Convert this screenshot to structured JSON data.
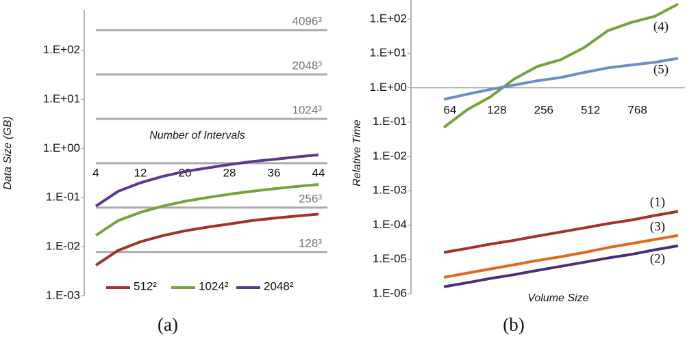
{
  "chart_data": [
    {
      "type": "line",
      "caption": "(a)",
      "x_label": "Number of Intervals",
      "y_label": "Data Size (GB)",
      "log_y": true,
      "ylim": [
        0.001,
        650
      ],
      "yticks": [
        {
          "value": 0.001,
          "label": "1.E-03"
        },
        {
          "value": 0.01,
          "label": "1.E-02"
        },
        {
          "value": 0.1,
          "label": "1.E-01"
        },
        {
          "value": 1,
          "label": "1.E+00"
        },
        {
          "value": 10,
          "label": "1.E+01"
        },
        {
          "value": 100,
          "label": "1.E+02"
        }
      ],
      "xlim": [
        4,
        44
      ],
      "xticks": [
        4,
        12,
        20,
        28,
        36,
        44
      ],
      "reference_lines": [
        {
          "label": "4096³",
          "value": 256
        },
        {
          "label": "2048³",
          "value": 32
        },
        {
          "label": "1024³",
          "value": 4
        },
        {
          "label": null,
          "value": 0.5
        },
        {
          "label": "256³",
          "value": 0.0625
        },
        {
          "label": "128³",
          "value": 0.0078
        }
      ],
      "x": [
        4,
        8,
        12,
        16,
        20,
        24,
        28,
        32,
        36,
        40,
        44
      ],
      "series": [
        {
          "name": "512²",
          "color": "#a5302a",
          "values": [
            0.0042,
            0.0084,
            0.0126,
            0.0168,
            0.021,
            0.025,
            0.029,
            0.034,
            0.038,
            0.042,
            0.046
          ]
        },
        {
          "name": "1024²",
          "color": "#77a23a",
          "values": [
            0.017,
            0.034,
            0.05,
            0.067,
            0.084,
            0.1,
            0.117,
            0.134,
            0.151,
            0.168,
            0.185
          ]
        },
        {
          "name": "2048²",
          "color": "#5b3a8c",
          "values": [
            0.067,
            0.134,
            0.2,
            0.27,
            0.34,
            0.4,
            0.47,
            0.54,
            0.6,
            0.67,
            0.74
          ]
        }
      ]
    },
    {
      "type": "line",
      "caption": "(b)",
      "x_label": "Volume Size",
      "y_label": "Relative Time",
      "log_y": true,
      "ylim": [
        1e-06,
        360
      ],
      "yticks": [
        {
          "value": 1e-06,
          "label": "1.E-06"
        },
        {
          "value": 1e-05,
          "label": "1.E-05"
        },
        {
          "value": 0.0001,
          "label": "1.E-04"
        },
        {
          "value": 0.001,
          "label": "1.E-03"
        },
        {
          "value": 0.01,
          "label": "1.E-02"
        },
        {
          "value": 0.1,
          "label": "1.E-01"
        },
        {
          "value": 1,
          "label": "1.E+00"
        },
        {
          "value": 10,
          "label": "1.E+01"
        },
        {
          "value": 100,
          "label": "1.E+02"
        }
      ],
      "categories": [
        "64",
        null,
        "128",
        null,
        "256",
        null,
        "512",
        null,
        "768",
        null,
        null
      ],
      "series": [
        {
          "name": "(4)",
          "color": "#77a23a",
          "values": [
            0.07,
            0.23,
            0.55,
            1.8,
            4.2,
            6.6,
            15,
            46,
            80,
            120,
            275
          ]
        },
        {
          "name": "(5)",
          "color": "#6a8fc6",
          "values": [
            0.46,
            0.65,
            0.9,
            1.2,
            1.6,
            2.0,
            2.8,
            3.8,
            4.6,
            5.5,
            7.2
          ]
        },
        {
          "name": "(1)",
          "color": "#a5302a",
          "values": [
            1.6e-05,
            2.1e-05,
            2.8e-05,
            3.6e-05,
            4.8e-05,
            6.3e-05,
            8.3e-05,
            0.00011,
            0.00014,
            0.00019,
            0.00025
          ]
        },
        {
          "name": "(3)",
          "color": "#e06a1c",
          "values": [
            3e-06,
            4e-06,
            5.3e-06,
            7e-06,
            9.3e-06,
            1.2e-05,
            1.6e-05,
            2.2e-05,
            2.9e-05,
            3.8e-05,
            5e-05
          ]
        },
        {
          "name": "(2)",
          "color": "#4b2e7a",
          "values": [
            1.6e-06,
            2.1e-06,
            2.8e-06,
            3.6e-06,
            4.8e-06,
            6.3e-06,
            8.3e-06,
            1.1e-05,
            1.4e-05,
            1.9e-05,
            2.5e-05
          ]
        }
      ]
    }
  ]
}
